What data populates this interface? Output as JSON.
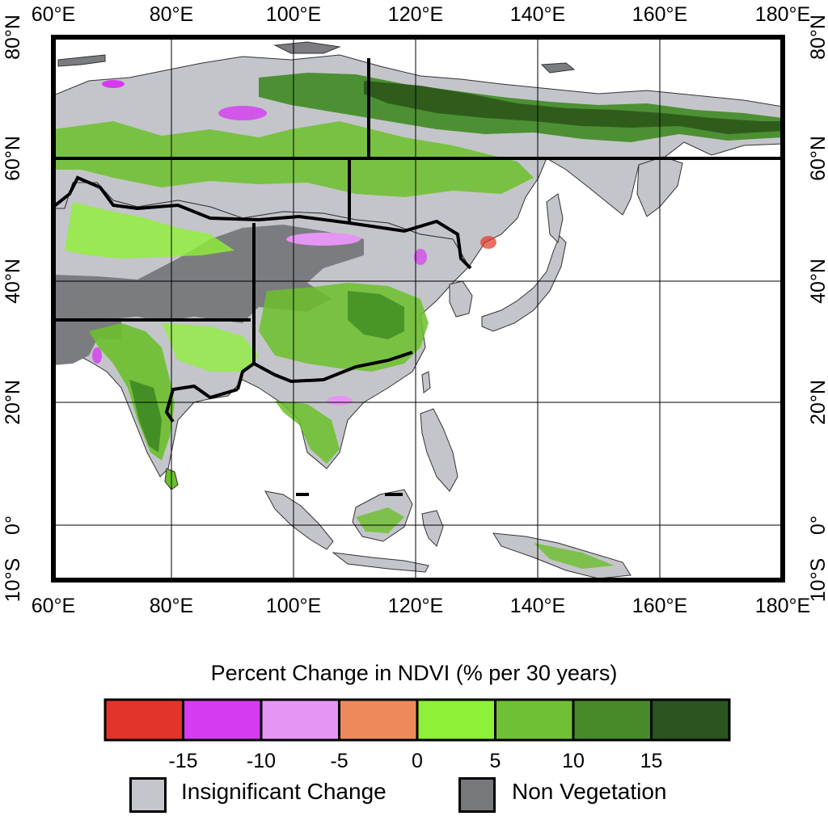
{
  "map": {
    "lon_ticks": [
      "60°E",
      "80°E",
      "100°E",
      "120°E",
      "140°E",
      "160°E",
      "180°E"
    ],
    "lat_ticks": [
      "80°N",
      "60°N",
      "40°N",
      "20°N",
      "0°",
      "10°S"
    ],
    "colors": {
      "frame": "#000000",
      "land_insignificant": "#c4c5ca",
      "land_nonveg": "#7b7c80",
      "green_light": "#8ef036",
      "green_mid": "#6cbf2c",
      "green_dark": "#3f8a22",
      "green_darkest": "#2a5418",
      "magenta": "#d63af0",
      "pink": "#e595f3",
      "red": "#e23427"
    }
  },
  "legend": {
    "title": "Percent Change in NDVI (% per 30 years)",
    "colorbar": {
      "colors": [
        "#e2342a",
        "#d53cf2",
        "#e595f5",
        "#ec8a5c",
        "#8ef038",
        "#70c035",
        "#488a2a",
        "#2a5420"
      ],
      "tick_labels": [
        "-15",
        "-10",
        "-5",
        "0",
        "5",
        "10",
        "15"
      ]
    },
    "categories": [
      {
        "label": "Insignificant Change",
        "color": "#c5c6cb"
      },
      {
        "label": "Non Vegetation",
        "color": "#77787c"
      }
    ]
  }
}
